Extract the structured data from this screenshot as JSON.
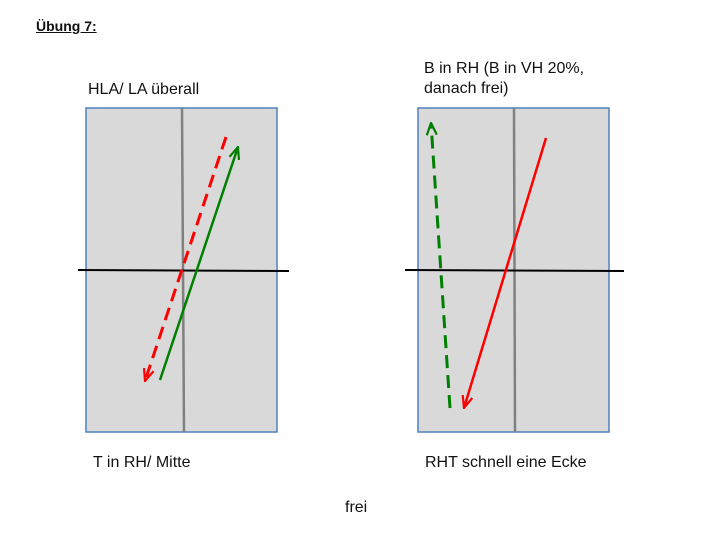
{
  "title": "Übung 7:",
  "left": {
    "top_label": "HLA/ LA überall",
    "bottom_label": "T in RH/ Mitte"
  },
  "right": {
    "top_label_line1": "B in RH (B in VH 20%,",
    "top_label_line2": "danach frei)",
    "bottom_label": "RHT schnell eine Ecke"
  },
  "footer": "frei",
  "colors": {
    "court_fill": "#d9d9d9",
    "court_border": "#4f81bd",
    "center_line": "#808080",
    "net_line": "#000000",
    "red_arrow": "#ff0000",
    "green_arrow": "#008000"
  },
  "icons": {
    "solid_arrow": "solid-arrow-icon",
    "dashed_arrow": "dashed-arrow-icon"
  }
}
